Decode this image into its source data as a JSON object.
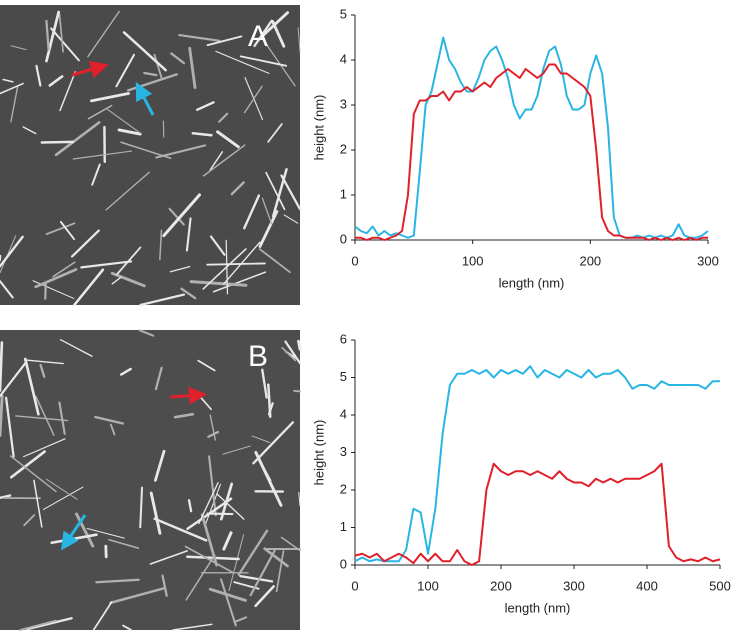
{
  "chart_data": [
    {
      "type": "line",
      "panel_label": "A",
      "x_label": "length (nm)",
      "y_label": "height (nm)",
      "xlim": [
        0,
        300
      ],
      "xticks": [
        0,
        100,
        200,
        300
      ],
      "ylim": [
        0,
        5
      ],
      "yticks": [
        0,
        1,
        2,
        3,
        4,
        5
      ],
      "x": [
        0,
        5,
        10,
        15,
        20,
        25,
        30,
        35,
        40,
        45,
        50,
        55,
        60,
        65,
        70,
        75,
        80,
        85,
        90,
        95,
        100,
        105,
        110,
        115,
        120,
        125,
        130,
        135,
        140,
        145,
        150,
        155,
        160,
        165,
        170,
        175,
        180,
        185,
        190,
        195,
        200,
        205,
        210,
        215,
        220,
        225,
        230,
        235,
        240,
        245,
        250,
        255,
        260,
        265,
        270,
        275,
        280,
        285,
        290,
        295,
        300
      ],
      "series": [
        {
          "color": "#29b5e3",
          "values": [
            0.3,
            0.2,
            0.15,
            0.3,
            0.1,
            0.2,
            0.1,
            0.15,
            0.1,
            0.05,
            0.1,
            1.5,
            3.0,
            3.3,
            3.9,
            4.5,
            4.0,
            3.8,
            3.5,
            3.3,
            3.3,
            3.6,
            4.0,
            4.2,
            4.3,
            4.0,
            3.6,
            3.0,
            2.7,
            2.9,
            2.9,
            3.2,
            3.8,
            4.2,
            4.3,
            3.9,
            3.2,
            2.9,
            2.9,
            3.0,
            3.7,
            4.1,
            3.7,
            2.5,
            0.5,
            0.1,
            0.05,
            0.05,
            0.1,
            0.05,
            0.1,
            0.05,
            0.1,
            0.05,
            0.1,
            0.35,
            0.1,
            0.05,
            0.05,
            0.1,
            0.2
          ]
        },
        {
          "color": "#e0202b",
          "values": [
            0.05,
            0.05,
            0.0,
            0.05,
            0.05,
            0.0,
            0.05,
            0.1,
            0.2,
            1.0,
            2.8,
            3.1,
            3.1,
            3.2,
            3.2,
            3.3,
            3.1,
            3.3,
            3.3,
            3.4,
            3.3,
            3.4,
            3.5,
            3.4,
            3.6,
            3.7,
            3.8,
            3.7,
            3.6,
            3.8,
            3.7,
            3.6,
            3.7,
            3.9,
            3.9,
            3.7,
            3.7,
            3.6,
            3.5,
            3.4,
            3.2,
            2.0,
            0.5,
            0.2,
            0.1,
            0.1,
            0.05,
            0.05,
            0.05,
            0.05,
            0.0,
            0.05,
            0.0,
            0.05,
            0.0,
            0.05,
            0.0,
            0.05,
            0.0,
            0.05,
            0.05
          ]
        }
      ]
    },
    {
      "type": "line",
      "panel_label": "B",
      "x_label": "length (nm)",
      "y_label": "height (nm)",
      "xlim": [
        0,
        500
      ],
      "xticks": [
        0,
        100,
        200,
        300,
        400,
        500
      ],
      "ylim": [
        0,
        6
      ],
      "yticks": [
        0,
        1,
        2,
        3,
        4,
        5,
        6
      ],
      "x": [
        0,
        10,
        20,
        30,
        40,
        50,
        60,
        70,
        80,
        90,
        100,
        110,
        120,
        130,
        140,
        150,
        160,
        170,
        180,
        190,
        200,
        210,
        220,
        230,
        240,
        250,
        260,
        270,
        280,
        290,
        300,
        310,
        320,
        330,
        340,
        350,
        360,
        370,
        380,
        390,
        400,
        410,
        420,
        430,
        440,
        450,
        460,
        470,
        480,
        490,
        500
      ],
      "series": [
        {
          "color": "#29b5e3",
          "values": [
            0.1,
            0.2,
            0.1,
            0.15,
            0.1,
            0.1,
            0.1,
            0.4,
            1.5,
            1.4,
            0.3,
            1.5,
            3.5,
            4.8,
            5.1,
            5.1,
            5.2,
            5.1,
            5.2,
            5.0,
            5.2,
            5.1,
            5.2,
            5.1,
            5.3,
            5.0,
            5.2,
            5.1,
            5.0,
            5.2,
            5.1,
            5.0,
            5.2,
            5.0,
            5.1,
            5.1,
            5.2,
            5.0,
            4.7,
            4.8,
            4.8,
            4.7,
            4.9,
            4.8,
            4.8,
            4.8,
            4.8,
            4.8,
            4.7,
            4.9,
            4.9
          ]
        },
        {
          "color": "#e0202b",
          "values": [
            0.25,
            0.3,
            0.2,
            0.3,
            0.1,
            0.2,
            0.3,
            0.2,
            0.05,
            0.3,
            0.1,
            0.3,
            0.1,
            0.1,
            0.4,
            0.1,
            0.0,
            0.1,
            2.0,
            2.7,
            2.5,
            2.4,
            2.5,
            2.5,
            2.4,
            2.5,
            2.4,
            2.3,
            2.5,
            2.3,
            2.2,
            2.2,
            2.1,
            2.3,
            2.2,
            2.3,
            2.2,
            2.3,
            2.3,
            2.3,
            2.4,
            2.5,
            2.7,
            0.5,
            0.2,
            0.1,
            0.15,
            0.1,
            0.2,
            0.1,
            0.15
          ]
        }
      ]
    }
  ]
}
